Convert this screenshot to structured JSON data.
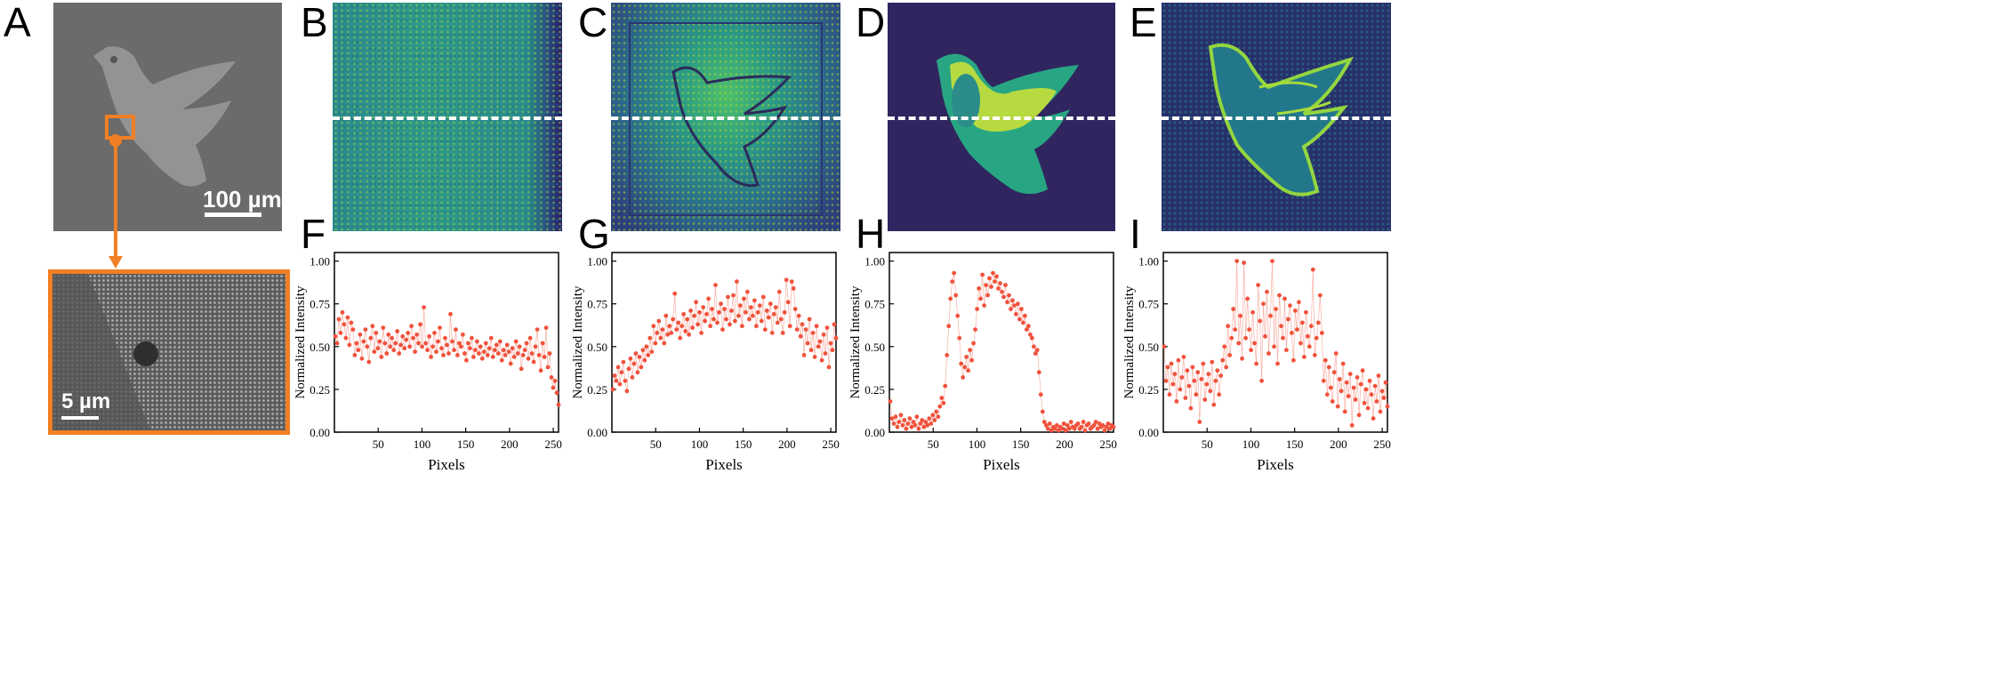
{
  "panel_labels": {
    "A": "A",
    "B": "B",
    "C": "C",
    "D": "D",
    "E": "E",
    "F": "F",
    "G": "G",
    "H": "H",
    "I": "I"
  },
  "scalebars": {
    "sem_top": "100 µm",
    "sem_zoom": "5 µm"
  },
  "colors": {
    "orange": "#f07f25",
    "data": "#f0523c",
    "viridis_dark": "#2b1a63",
    "viridis_mid": "#21918c",
    "viridis_bright": "#f1e51d"
  },
  "icons": {
    "sem_dove": "dove-silhouette-icon",
    "fluor_dove": "dove-silhouette-icon"
  },
  "chart_data": [
    {
      "id": "F",
      "type": "scatter",
      "xlabel": "Pixels",
      "ylabel": "Normalized Intensity",
      "xlim": [
        0,
        256
      ],
      "ylim": [
        0,
        1.05
      ],
      "xticks": [
        50,
        100,
        150,
        200,
        250
      ],
      "yticks": [
        "0.00",
        "0.25",
        "0.50",
        "0.75",
        "1.00"
      ],
      "y": [
        0.56,
        0.52,
        0.66,
        0.58,
        0.7,
        0.63,
        0.55,
        0.67,
        0.51,
        0.64,
        0.6,
        0.45,
        0.52,
        0.48,
        0.57,
        0.43,
        0.53,
        0.6,
        0.5,
        0.41,
        0.55,
        0.62,
        0.47,
        0.58,
        0.49,
        0.53,
        0.44,
        0.61,
        0.52,
        0.46,
        0.57,
        0.5,
        0.55,
        0.48,
        0.52,
        0.59,
        0.46,
        0.51,
        0.56,
        0.49,
        0.54,
        0.58,
        0.5,
        0.62,
        0.55,
        0.47,
        0.57,
        0.52,
        0.63,
        0.5,
        0.73,
        0.52,
        0.48,
        0.56,
        0.44,
        0.5,
        0.58,
        0.47,
        0.53,
        0.61,
        0.49,
        0.45,
        0.55,
        0.51,
        0.46,
        0.69,
        0.53,
        0.48,
        0.6,
        0.45,
        0.52,
        0.5,
        0.57,
        0.46,
        0.42,
        0.52,
        0.49,
        0.55,
        0.44,
        0.48,
        0.53,
        0.46,
        0.5,
        0.43,
        0.47,
        0.52,
        0.45,
        0.49,
        0.55,
        0.44,
        0.48,
        0.51,
        0.46,
        0.53,
        0.42,
        0.48,
        0.45,
        0.51,
        0.47,
        0.4,
        0.49,
        0.44,
        0.53,
        0.46,
        0.5,
        0.37,
        0.45,
        0.48,
        0.52,
        0.43,
        0.55,
        0.46,
        0.41,
        0.5,
        0.6,
        0.45,
        0.36,
        0.52,
        0.44,
        0.61,
        0.38,
        0.46,
        0.32,
        0.26,
        0.3,
        0.23,
        0.16
      ]
    },
    {
      "id": "G",
      "type": "scatter",
      "xlabel": "Pixels",
      "ylabel": "Normalized Intensity",
      "xlim": [
        0,
        256
      ],
      "ylim": [
        0,
        1.05
      ],
      "xticks": [
        50,
        100,
        150,
        200,
        250
      ],
      "yticks": [
        "0.00",
        "0.25",
        "0.50",
        "0.75",
        "1.00"
      ],
      "y": [
        0.25,
        0.33,
        0.3,
        0.38,
        0.28,
        0.35,
        0.41,
        0.3,
        0.24,
        0.37,
        0.43,
        0.32,
        0.4,
        0.46,
        0.35,
        0.44,
        0.38,
        0.48,
        0.42,
        0.5,
        0.45,
        0.55,
        0.47,
        0.62,
        0.52,
        0.58,
        0.65,
        0.55,
        0.6,
        0.52,
        0.68,
        0.57,
        0.62,
        0.58,
        0.66,
        0.81,
        0.6,
        0.64,
        0.55,
        0.62,
        0.69,
        0.59,
        0.66,
        0.57,
        0.71,
        0.61,
        0.68,
        0.76,
        0.63,
        0.7,
        0.58,
        0.73,
        0.65,
        0.69,
        0.78,
        0.62,
        0.72,
        0.66,
        0.86,
        0.64,
        0.7,
        0.75,
        0.6,
        0.72,
        0.66,
        0.79,
        0.63,
        0.71,
        0.8,
        0.65,
        0.88,
        0.68,
        0.74,
        0.62,
        0.78,
        0.7,
        0.82,
        0.66,
        0.73,
        0.68,
        0.77,
        0.62,
        0.7,
        0.74,
        0.65,
        0.79,
        0.6,
        0.71,
        0.67,
        0.75,
        0.58,
        0.69,
        0.73,
        0.64,
        0.82,
        0.66,
        0.58,
        0.7,
        0.89,
        0.76,
        0.62,
        0.88,
        0.84,
        0.72,
        0.6,
        0.68,
        0.56,
        0.63,
        0.45,
        0.6,
        0.52,
        0.66,
        0.48,
        0.58,
        0.44,
        0.62,
        0.5,
        0.53,
        0.42,
        0.57,
        0.46,
        0.61,
        0.38,
        0.52,
        0.48,
        0.63,
        0.55
      ]
    },
    {
      "id": "H",
      "type": "scatter",
      "xlabel": "Pixels",
      "ylabel": "Normalized Intensity",
      "xlim": [
        0,
        256
      ],
      "ylim": [
        0,
        1.05
      ],
      "xticks": [
        50,
        100,
        150,
        200,
        250
      ],
      "yticks": [
        "0.00",
        "0.25",
        "0.50",
        "0.75",
        "1.00"
      ],
      "y": [
        0.18,
        0.08,
        0.05,
        0.09,
        0.03,
        0.06,
        0.1,
        0.04,
        0.07,
        0.02,
        0.05,
        0.08,
        0.03,
        0.06,
        0.04,
        0.09,
        0.02,
        0.05,
        0.07,
        0.03,
        0.06,
        0.04,
        0.08,
        0.05,
        0.1,
        0.07,
        0.12,
        0.09,
        0.15,
        0.2,
        0.17,
        0.27,
        0.45,
        0.62,
        0.78,
        0.88,
        0.93,
        0.8,
        0.68,
        0.55,
        0.4,
        0.32,
        0.38,
        0.44,
        0.36,
        0.48,
        0.42,
        0.52,
        0.6,
        0.72,
        0.84,
        0.78,
        0.92,
        0.74,
        0.86,
        0.8,
        0.9,
        0.85,
        0.93,
        0.88,
        0.91,
        0.84,
        0.87,
        0.82,
        0.79,
        0.86,
        0.76,
        0.8,
        0.72,
        0.77,
        0.74,
        0.69,
        0.75,
        0.66,
        0.72,
        0.64,
        0.68,
        0.6,
        0.62,
        0.57,
        0.55,
        0.5,
        0.46,
        0.48,
        0.35,
        0.22,
        0.12,
        0.06,
        0.04,
        0.02,
        0.05,
        0.01,
        0.03,
        0.02,
        0.04,
        0.01,
        0.03,
        0.02,
        0.05,
        0.01,
        0.04,
        0.02,
        0.06,
        0.03,
        0.02,
        0.04,
        0.05,
        0.02,
        0.03,
        0.06,
        0.01,
        0.04,
        0.05,
        0.02,
        0.03,
        0.04,
        0.06,
        0.02,
        0.05,
        0.03,
        0.04,
        0.01,
        0.03,
        0.05,
        0.02,
        0.04,
        0.03
      ]
    },
    {
      "id": "I",
      "type": "scatter",
      "xlabel": "Pixels",
      "ylabel": "Normalized Intensity",
      "xlim": [
        0,
        256
      ],
      "ylim": [
        0,
        1.05
      ],
      "xticks": [
        50,
        100,
        150,
        200,
        250
      ],
      "yticks": [
        "0.00",
        "0.25",
        "0.50",
        "0.75",
        "1.00"
      ],
      "y": [
        0.5,
        0.3,
        0.38,
        0.22,
        0.4,
        0.28,
        0.34,
        0.18,
        0.42,
        0.25,
        0.32,
        0.44,
        0.2,
        0.36,
        0.27,
        0.14,
        0.38,
        0.3,
        0.22,
        0.35,
        0.06,
        0.31,
        0.4,
        0.19,
        0.28,
        0.34,
        0.24,
        0.41,
        0.16,
        0.3,
        0.36,
        0.22,
        0.33,
        0.42,
        0.5,
        0.38,
        0.62,
        0.45,
        0.55,
        0.72,
        0.6,
        1.0,
        0.52,
        0.68,
        0.43,
        0.99,
        0.55,
        0.78,
        0.6,
        0.48,
        0.7,
        0.52,
        0.4,
        0.86,
        0.65,
        0.3,
        0.75,
        0.56,
        0.82,
        0.46,
        0.68,
        1.0,
        0.5,
        0.72,
        0.4,
        0.8,
        0.62,
        0.55,
        0.78,
        0.48,
        0.66,
        0.74,
        0.58,
        0.42,
        0.71,
        0.6,
        0.76,
        0.52,
        0.64,
        0.44,
        0.7,
        0.56,
        0.5,
        0.62,
        0.95,
        0.45,
        0.55,
        0.64,
        0.8,
        0.58,
        0.3,
        0.42,
        0.22,
        0.38,
        0.26,
        0.18,
        0.35,
        0.46,
        0.15,
        0.31,
        0.24,
        0.4,
        0.12,
        0.29,
        0.21,
        0.34,
        0.04,
        0.26,
        0.19,
        0.32,
        0.1,
        0.28,
        0.36,
        0.17,
        0.25,
        0.14,
        0.3,
        0.22,
        0.08,
        0.27,
        0.18,
        0.33,
        0.12,
        0.24,
        0.2,
        0.29,
        0.15
      ]
    }
  ]
}
